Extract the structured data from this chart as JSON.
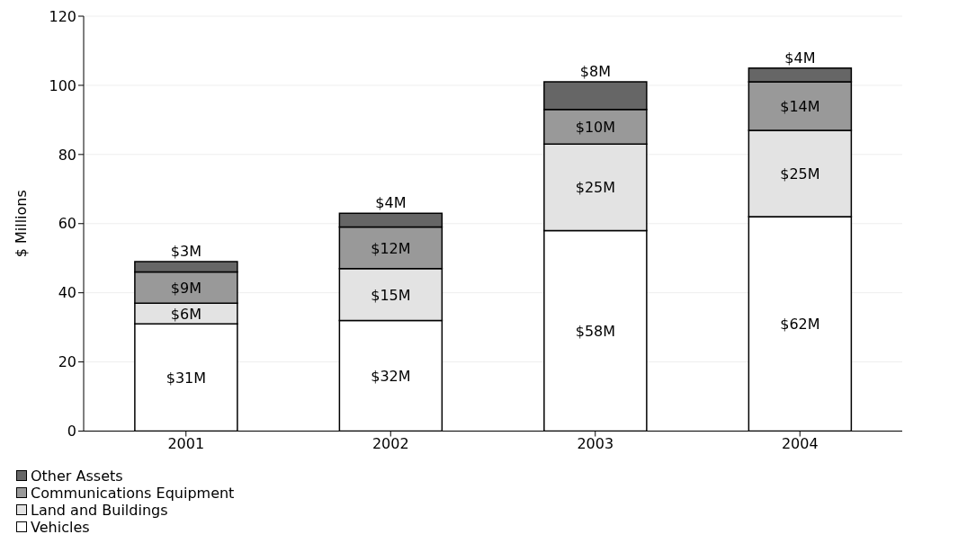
{
  "chart_data": {
    "type": "bar",
    "stacked": true,
    "ylabel": "$ Millions",
    "categories": [
      "2001",
      "2002",
      "2003",
      "2004"
    ],
    "ylim": [
      0,
      120
    ],
    "yticks": [
      0,
      20,
      40,
      60,
      80,
      100,
      120
    ],
    "grid": "y",
    "legend": "bottom",
    "series": [
      {
        "name": "Vehicles",
        "color": "#ffffff",
        "values": [
          31,
          32,
          58,
          62
        ],
        "value_labels": [
          "$31M",
          "$32M",
          "$58M",
          "$62M"
        ]
      },
      {
        "name": "Land and Buildings",
        "color": "#e3e3e3",
        "values": [
          6,
          15,
          25,
          25
        ],
        "value_labels": [
          "$6M",
          "$15M",
          "$25M",
          "$25M"
        ]
      },
      {
        "name": "Communications Equipment",
        "color": "#999999",
        "values": [
          9,
          12,
          10,
          14
        ],
        "value_labels": [
          "$9M",
          "$12M",
          "$10M",
          "$14M"
        ]
      },
      {
        "name": "Other Assets",
        "color": "#666666",
        "values": [
          3,
          4,
          8,
          4
        ],
        "value_labels": [
          "$3M",
          "$4M",
          "$8M",
          "$4M"
        ]
      }
    ]
  }
}
